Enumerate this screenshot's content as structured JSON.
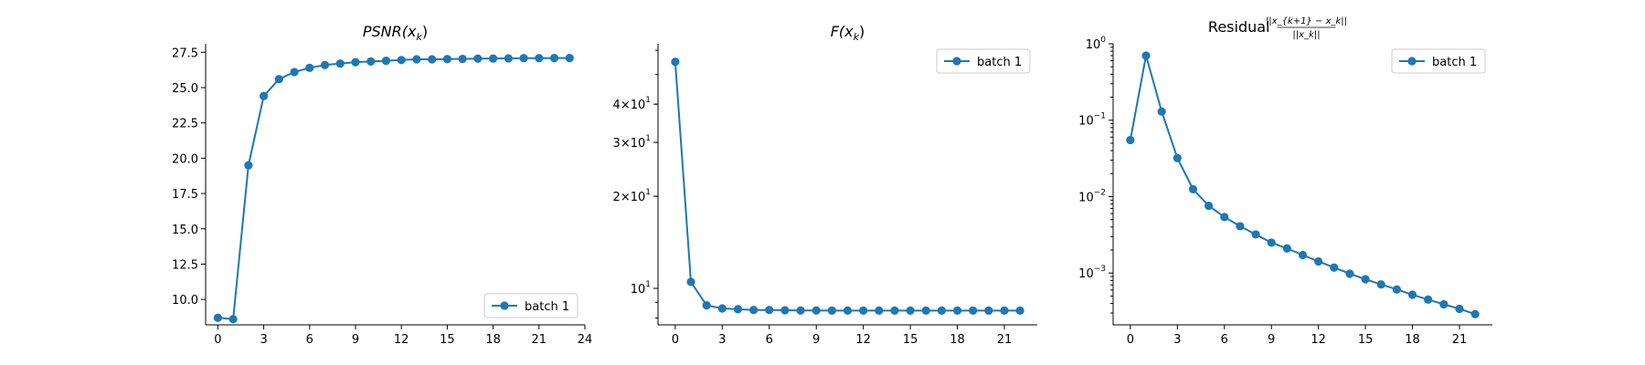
{
  "chart_data": [
    {
      "type": "line",
      "title": "PSNR(x_k)",
      "title_parts": [
        {
          "text": "PSNR(",
          "style": "italic"
        },
        {
          "text": "x",
          "style": "italic"
        },
        {
          "text": "k",
          "style": "sub"
        },
        {
          "text": ")",
          "style": "normal"
        }
      ],
      "xlim": [
        -0.8,
        24
      ],
      "ylim": [
        8.2,
        28.1
      ],
      "yscale": "linear",
      "xticks": [
        0,
        3,
        6,
        9,
        12,
        15,
        18,
        21,
        24
      ],
      "yticks": [
        10.0,
        12.5,
        15.0,
        17.5,
        20.0,
        22.5,
        25.0,
        27.5
      ],
      "ytick_labels": [
        "10.0",
        "12.5",
        "15.0",
        "17.5",
        "20.0",
        "22.5",
        "25.0",
        "27.5"
      ],
      "legend_position": "lower right",
      "series": [
        {
          "name": "batch 1",
          "color": "#1f77b4",
          "x": [
            0,
            1,
            2,
            3,
            4,
            5,
            6,
            7,
            8,
            9,
            10,
            11,
            12,
            13,
            14,
            15,
            16,
            17,
            18,
            19,
            20,
            21,
            22,
            23
          ],
          "values": [
            8.7,
            8.6,
            19.5,
            24.4,
            25.6,
            26.1,
            26.4,
            26.6,
            26.7,
            26.8,
            26.85,
            26.9,
            26.95,
            27.0,
            27.0,
            27.02,
            27.03,
            27.05,
            27.06,
            27.07,
            27.08,
            27.08,
            27.09,
            27.09
          ]
        }
      ]
    },
    {
      "type": "line",
      "title": "F(x_k)",
      "title_parts": [
        {
          "text": "F(",
          "style": "italic"
        },
        {
          "text": "x",
          "style": "italic"
        },
        {
          "text": "k",
          "style": "sub"
        },
        {
          "text": ")",
          "style": "normal"
        }
      ],
      "xlim": [
        -1.1,
        23.1
      ],
      "ylim": [
        7.6,
        63
      ],
      "yscale": "log",
      "xticks": [
        0,
        3,
        6,
        9,
        12,
        15,
        18,
        21
      ],
      "yticks": [
        10,
        20,
        30,
        40
      ],
      "ytick_labels": [
        {
          "base": "10",
          "exp": "1",
          "coef": ""
        },
        {
          "base": "10",
          "exp": "1",
          "coef": "2×"
        },
        {
          "base": "10",
          "exp": "1",
          "coef": "3×"
        },
        {
          "base": "10",
          "exp": "1",
          "coef": "4×"
        }
      ],
      "legend_position": "upper right",
      "series": [
        {
          "name": "batch 1",
          "color": "#1f77b4",
          "x": [
            0,
            1,
            2,
            3,
            4,
            5,
            6,
            7,
            8,
            9,
            10,
            11,
            12,
            13,
            14,
            15,
            16,
            17,
            18,
            19,
            20,
            21,
            22
          ],
          "values": [
            55,
            10.5,
            8.8,
            8.6,
            8.55,
            8.5,
            8.5,
            8.48,
            8.47,
            8.47,
            8.46,
            8.46,
            8.46,
            8.46,
            8.46,
            8.46,
            8.46,
            8.46,
            8.46,
            8.46,
            8.46,
            8.46,
            8.46
          ]
        }
      ]
    },
    {
      "type": "line",
      "title": "Residual ||x_{k+1} - x_k|| / ||x_k||",
      "title_parts": [
        {
          "text": "Residual",
          "style": "normal"
        },
        {
          "text": "||x_{k+1} − x_k||",
          "style": "num"
        },
        {
          "text": "||x_k||",
          "style": "den"
        }
      ],
      "xlim": [
        -1.1,
        23.1
      ],
      "ylim": [
        0.00021,
        1.0
      ],
      "yscale": "log",
      "xticks": [
        0,
        3,
        6,
        9,
        12,
        15,
        18,
        21
      ],
      "yticks": [
        0.001,
        0.01,
        0.1,
        1
      ],
      "ytick_labels": [
        {
          "base": "10",
          "exp": "−3",
          "coef": ""
        },
        {
          "base": "10",
          "exp": "−2",
          "coef": ""
        },
        {
          "base": "10",
          "exp": "−1",
          "coef": ""
        },
        {
          "base": "10",
          "exp": "0",
          "coef": ""
        }
      ],
      "legend_position": "upper right",
      "series": [
        {
          "name": "batch 1",
          "color": "#1f77b4",
          "x": [
            0,
            1,
            2,
            3,
            4,
            5,
            6,
            7,
            8,
            9,
            10,
            11,
            12,
            13,
            14,
            15,
            16,
            17,
            18,
            19,
            20,
            21,
            22
          ],
          "values": [
            0.055,
            0.7,
            0.13,
            0.032,
            0.0125,
            0.0076,
            0.0054,
            0.0041,
            0.0032,
            0.0025,
            0.0021,
            0.00172,
            0.00142,
            0.00118,
            0.00098,
            0.00083,
            0.00071,
            0.00061,
            0.00052,
            0.00045,
            0.00039,
            0.00034,
            0.00029
          ]
        }
      ]
    }
  ]
}
